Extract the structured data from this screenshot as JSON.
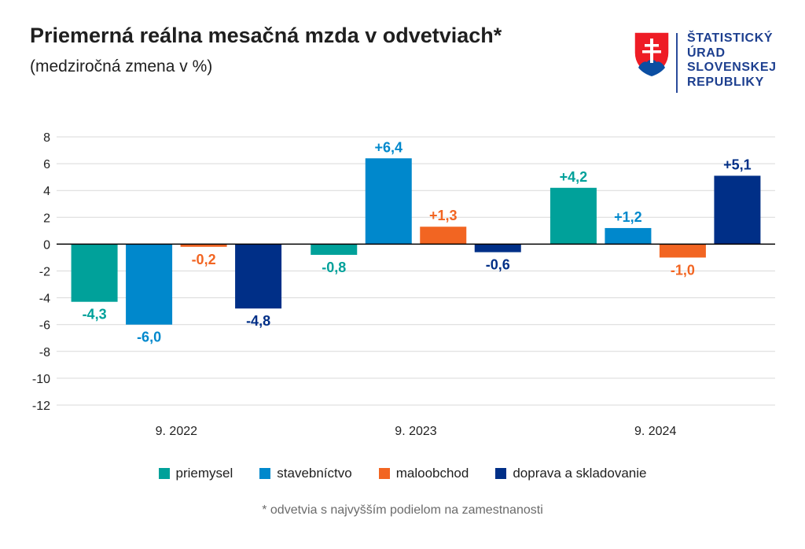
{
  "header": {
    "title": "Priemerná reálna mesačná mzda v odvetviach*",
    "subtitle": "(medziročná zmena v %)"
  },
  "logo": {
    "lines": [
      "ŠTATISTICKÝ",
      "ÚRAD",
      "SLOVENSKEJ",
      "REPUBLIKY"
    ]
  },
  "colors": {
    "priemysel": "#00a19a",
    "stavebnictvo": "#0088cc",
    "maloobchod": "#f26522",
    "doprava": "#002f87",
    "grid": "#d9d9d9",
    "zero_line": "#000000",
    "axis_text": "#1f1f1f"
  },
  "chart_data": {
    "type": "bar",
    "title": "Priemerná reálna mesačná mzda v odvetviach*",
    "subtitle": "(medziročná zmena v %)",
    "categories": [
      "9. 2022",
      "9. 2023",
      "9. 2024"
    ],
    "series": [
      {
        "name": "priemysel",
        "color_key": "priemysel",
        "values": [
          -4.3,
          -0.8,
          4.2
        ],
        "labels": [
          "-4,3",
          "-0,8",
          "+4,2"
        ]
      },
      {
        "name": "stavebníctvo",
        "color_key": "stavebnictvo",
        "values": [
          -6.0,
          6.4,
          1.2
        ],
        "labels": [
          "-6,0",
          "+6,4",
          "+1,2"
        ]
      },
      {
        "name": "maloobchod",
        "color_key": "maloobchod",
        "values": [
          -0.2,
          1.3,
          -1.0
        ],
        "labels": [
          "-0,2",
          "+1,3",
          "-1,0"
        ]
      },
      {
        "name": "doprava a skladovanie",
        "color_key": "doprava",
        "values": [
          -4.8,
          -0.6,
          5.1
        ],
        "labels": [
          "-4,8",
          "-0,6",
          "+5,1"
        ]
      }
    ],
    "ylim": [
      -12,
      8
    ],
    "yticks": [
      8,
      6,
      4,
      2,
      0,
      -2,
      -4,
      -6,
      -8,
      -10,
      -12
    ],
    "ytick_labels": [
      "8",
      "6",
      "4",
      "2",
      "0",
      "-2",
      "-4",
      "-6",
      "-8",
      "-10",
      "-12"
    ],
    "xlabel": "",
    "ylabel": "",
    "grid": true,
    "legend_position": "bottom"
  },
  "footnote": "* odvetvia s najvyšším podielom na zamestnanosti"
}
